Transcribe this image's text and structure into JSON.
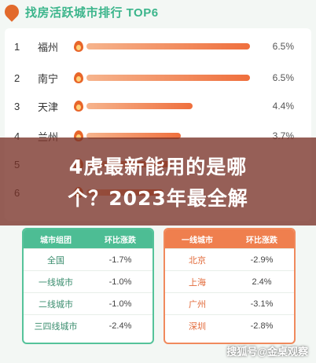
{
  "header": {
    "title": "找房活跃城市排行 TOP6"
  },
  "ranking": [
    {
      "rank": "1",
      "city": "福州",
      "value": "6.5%",
      "pct": 0.955
    },
    {
      "rank": "2",
      "city": "南宁",
      "value": "6.5%",
      "pct": 0.955
    },
    {
      "rank": "3",
      "city": "天津",
      "value": "4.4%",
      "pct": 0.62
    },
    {
      "rank": "4",
      "city": "兰州",
      "value": "3.7%",
      "pct": 0.55
    },
    {
      "rank": "5",
      "city": "",
      "value": "",
      "pct": 0.5
    },
    {
      "rank": "6",
      "city": "",
      "value": "",
      "pct": 0.45
    }
  ],
  "banner": {
    "line1": "4虎最新能用的是哪",
    "line2": "个？2023年最全解"
  },
  "green_table": {
    "head": [
      "城市组团",
      "环比涨跌"
    ],
    "rows": [
      [
        "全国",
        "-1.7%"
      ],
      [
        "一线城市",
        "-1.0%"
      ],
      [
        "二线城市",
        "-1.0%"
      ],
      [
        "三四线城市",
        "-2.4%"
      ]
    ]
  },
  "orange_table": {
    "head": [
      "一线城市",
      "环比涨跌"
    ],
    "rows": [
      [
        "北京",
        "-2.9%"
      ],
      [
        "上海",
        "2.4%"
      ],
      [
        "广州",
        "-3.1%"
      ],
      [
        "深圳",
        "-2.8%"
      ]
    ]
  },
  "watermark": "搜狐号@金桌观察",
  "colors": {
    "green": "#4dbd94",
    "orange": "#ef7f4e",
    "banner": "#7a3228"
  }
}
